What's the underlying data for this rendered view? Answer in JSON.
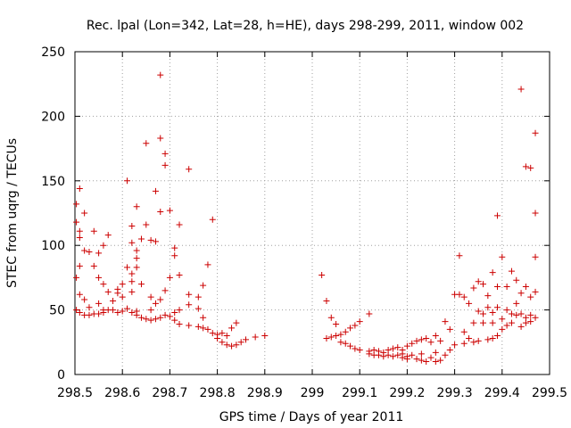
{
  "chart_data": {
    "type": "scatter",
    "title": "Rec. lpal (Lon=342, Lat=28, h=HE), days 298-299, 2011, window 002",
    "xlabel": "GPS time / Days of year 2011",
    "ylabel": "STEC from uqrg / TECUs",
    "xlim": [
      298.5,
      299.5
    ],
    "ylim": [
      0,
      250
    ],
    "x_ticks": [
      298.5,
      298.6,
      298.7,
      298.8,
      298.9,
      299,
      299.1,
      299.2,
      299.3,
      299.4,
      299.5
    ],
    "x_tick_labels": [
      "298.5",
      "298.6",
      "298.7",
      "298.8",
      "298.9",
      "299",
      "299.1",
      "299.2",
      "299.3",
      "299.4",
      "299.5"
    ],
    "y_ticks": [
      0,
      50,
      100,
      150,
      200,
      250
    ],
    "y_tick_labels": [
      "0",
      "50",
      "100",
      "150",
      "200",
      "250"
    ],
    "grid": true,
    "marker": "+",
    "color": "#cc0000",
    "points": [
      [
        298.503,
        132
      ],
      [
        298.503,
        118
      ],
      [
        298.503,
        75
      ],
      [
        298.503,
        50
      ],
      [
        298.51,
        144
      ],
      [
        298.51,
        111
      ],
      [
        298.51,
        106
      ],
      [
        298.51,
        84
      ],
      [
        298.51,
        62
      ],
      [
        298.51,
        48
      ],
      [
        298.52,
        125
      ],
      [
        298.52,
        96
      ],
      [
        298.52,
        58
      ],
      [
        298.52,
        46
      ],
      [
        298.53,
        95
      ],
      [
        298.53,
        52
      ],
      [
        298.53,
        46
      ],
      [
        298.54,
        111
      ],
      [
        298.54,
        84
      ],
      [
        298.54,
        47
      ],
      [
        298.55,
        94
      ],
      [
        298.55,
        75
      ],
      [
        298.55,
        55
      ],
      [
        298.55,
        47
      ],
      [
        298.56,
        100
      ],
      [
        298.56,
        70
      ],
      [
        298.56,
        50
      ],
      [
        298.56,
        48
      ],
      [
        298.57,
        108
      ],
      [
        298.57,
        64
      ],
      [
        298.57,
        50
      ],
      [
        298.58,
        57
      ],
      [
        298.58,
        50
      ],
      [
        298.59,
        66
      ],
      [
        298.59,
        63
      ],
      [
        298.59,
        48
      ],
      [
        298.6,
        70
      ],
      [
        298.6,
        60
      ],
      [
        298.6,
        49
      ],
      [
        298.61,
        150
      ],
      [
        298.61,
        83
      ],
      [
        298.61,
        51
      ],
      [
        298.62,
        115
      ],
      [
        298.62,
        102
      ],
      [
        298.62,
        78
      ],
      [
        298.62,
        72
      ],
      [
        298.62,
        64
      ],
      [
        298.62,
        48
      ],
      [
        298.63,
        130
      ],
      [
        298.63,
        96
      ],
      [
        298.63,
        90
      ],
      [
        298.63,
        83
      ],
      [
        298.63,
        49
      ],
      [
        298.63,
        46
      ],
      [
        298.64,
        105
      ],
      [
        298.64,
        70
      ],
      [
        298.64,
        44
      ],
      [
        298.65,
        179
      ],
      [
        298.65,
        116
      ],
      [
        298.65,
        43
      ],
      [
        298.66,
        104
      ],
      [
        298.66,
        60
      ],
      [
        298.66,
        50
      ],
      [
        298.66,
        42
      ],
      [
        298.67,
        142
      ],
      [
        298.67,
        103
      ],
      [
        298.67,
        55
      ],
      [
        298.67,
        43
      ],
      [
        298.68,
        232
      ],
      [
        298.68,
        183
      ],
      [
        298.68,
        126
      ],
      [
        298.68,
        58
      ],
      [
        298.68,
        44
      ],
      [
        298.69,
        171
      ],
      [
        298.69,
        162
      ],
      [
        298.69,
        65
      ],
      [
        298.69,
        46
      ],
      [
        298.7,
        127
      ],
      [
        298.7,
        75
      ],
      [
        298.7,
        45
      ],
      [
        298.71,
        98
      ],
      [
        298.71,
        92
      ],
      [
        298.71,
        48
      ],
      [
        298.71,
        42
      ],
      [
        298.72,
        116
      ],
      [
        298.72,
        77
      ],
      [
        298.72,
        50
      ],
      [
        298.72,
        39
      ],
      [
        298.74,
        159
      ],
      [
        298.74,
        62
      ],
      [
        298.74,
        54
      ],
      [
        298.74,
        38
      ],
      [
        298.76,
        60
      ],
      [
        298.76,
        51
      ],
      [
        298.76,
        37
      ],
      [
        298.77,
        69
      ],
      [
        298.77,
        44
      ],
      [
        298.77,
        36
      ],
      [
        298.78,
        85
      ],
      [
        298.78,
        35
      ],
      [
        298.79,
        120
      ],
      [
        298.79,
        32
      ],
      [
        298.8,
        31
      ],
      [
        298.8,
        28
      ],
      [
        298.81,
        32
      ],
      [
        298.81,
        25
      ],
      [
        298.82,
        30
      ],
      [
        298.82,
        23
      ],
      [
        298.83,
        36
      ],
      [
        298.83,
        22
      ],
      [
        298.84,
        40
      ],
      [
        298.84,
        23
      ],
      [
        298.85,
        25
      ],
      [
        298.86,
        27
      ],
      [
        298.88,
        29
      ],
      [
        298.9,
        30
      ],
      [
        299.02,
        77
      ],
      [
        299.03,
        57
      ],
      [
        299.03,
        28
      ],
      [
        299.04,
        44
      ],
      [
        299.04,
        29
      ],
      [
        299.05,
        39
      ],
      [
        299.05,
        30
      ],
      [
        299.06,
        31
      ],
      [
        299.06,
        25
      ],
      [
        299.07,
        33
      ],
      [
        299.07,
        24
      ],
      [
        299.08,
        36
      ],
      [
        299.08,
        22
      ],
      [
        299.09,
        38
      ],
      [
        299.09,
        20
      ],
      [
        299.1,
        41
      ],
      [
        299.1,
        19
      ],
      [
        299.12,
        47
      ],
      [
        299.12,
        18
      ],
      [
        299.12,
        16
      ],
      [
        299.13,
        19
      ],
      [
        299.13,
        15
      ],
      [
        299.14,
        18
      ],
      [
        299.14,
        15
      ],
      [
        299.15,
        17
      ],
      [
        299.15,
        14
      ],
      [
        299.16,
        19
      ],
      [
        299.16,
        15
      ],
      [
        299.17,
        20
      ],
      [
        299.17,
        14
      ],
      [
        299.18,
        21
      ],
      [
        299.18,
        15
      ],
      [
        299.19,
        19
      ],
      [
        299.19,
        16
      ],
      [
        299.19,
        13
      ],
      [
        299.2,
        22
      ],
      [
        299.2,
        14
      ],
      [
        299.2,
        12
      ],
      [
        299.21,
        24
      ],
      [
        299.21,
        15
      ],
      [
        299.22,
        26
      ],
      [
        299.22,
        12
      ],
      [
        299.23,
        27
      ],
      [
        299.23,
        16
      ],
      [
        299.23,
        11
      ],
      [
        299.24,
        28
      ],
      [
        299.24,
        10
      ],
      [
        299.25,
        25
      ],
      [
        299.25,
        13
      ],
      [
        299.26,
        30
      ],
      [
        299.26,
        17
      ],
      [
        299.26,
        10
      ],
      [
        299.27,
        26
      ],
      [
        299.27,
        11
      ],
      [
        299.28,
        41
      ],
      [
        299.28,
        15
      ],
      [
        299.29,
        35
      ],
      [
        299.29,
        19
      ],
      [
        299.3,
        62
      ],
      [
        299.3,
        23
      ],
      [
        299.31,
        92
      ],
      [
        299.31,
        62
      ],
      [
        299.32,
        60
      ],
      [
        299.32,
        33
      ],
      [
        299.32,
        24
      ],
      [
        299.33,
        55
      ],
      [
        299.33,
        28
      ],
      [
        299.34,
        67
      ],
      [
        299.34,
        40
      ],
      [
        299.34,
        25
      ],
      [
        299.35,
        72
      ],
      [
        299.35,
        49
      ],
      [
        299.35,
        26
      ],
      [
        299.36,
        70
      ],
      [
        299.36,
        47
      ],
      [
        299.36,
        40
      ],
      [
        299.37,
        61
      ],
      [
        299.37,
        52
      ],
      [
        299.37,
        27
      ],
      [
        299.38,
        79
      ],
      [
        299.38,
        48
      ],
      [
        299.38,
        40
      ],
      [
        299.38,
        28
      ],
      [
        299.39,
        123
      ],
      [
        299.39,
        68
      ],
      [
        299.39,
        52
      ],
      [
        299.39,
        30
      ],
      [
        299.4,
        91
      ],
      [
        299.4,
        43
      ],
      [
        299.4,
        35
      ],
      [
        299.41,
        68
      ],
      [
        299.41,
        50
      ],
      [
        299.41,
        38
      ],
      [
        299.42,
        80
      ],
      [
        299.42,
        47
      ],
      [
        299.42,
        40
      ],
      [
        299.43,
        73
      ],
      [
        299.43,
        55
      ],
      [
        299.43,
        46
      ],
      [
        299.44,
        221
      ],
      [
        299.44,
        63
      ],
      [
        299.44,
        47
      ],
      [
        299.44,
        37
      ],
      [
        299.45,
        161
      ],
      [
        299.45,
        68
      ],
      [
        299.45,
        44
      ],
      [
        299.45,
        40
      ],
      [
        299.46,
        160
      ],
      [
        299.46,
        60
      ],
      [
        299.46,
        46
      ],
      [
        299.46,
        41
      ],
      [
        299.47,
        187
      ],
      [
        299.47,
        125
      ],
      [
        299.47,
        91
      ],
      [
        299.47,
        64
      ],
      [
        299.47,
        44
      ]
    ]
  }
}
